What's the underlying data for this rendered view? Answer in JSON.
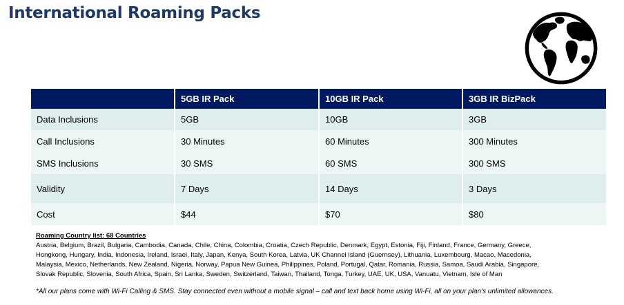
{
  "page": {
    "title": "International Roaming Packs"
  },
  "table": {
    "headers": [
      "",
      "5GB IR Pack",
      "10GB IR Pack",
      "3GB IR BizPack"
    ],
    "rows": [
      [
        "Data Inclusions",
        "5GB",
        "10GB",
        "3GB"
      ],
      [
        "Call Inclusions",
        "30 Minutes",
        "60 Minutes",
        "300 Minutes"
      ],
      [
        "SMS Inclusions",
        "30 SMS",
        "60 SMS",
        "300 SMS"
      ],
      [
        "Validity",
        "7 Days",
        "14 Days",
        "3 Days"
      ],
      [
        "Cost",
        "$44",
        "$70",
        "$80"
      ]
    ]
  },
  "countries": {
    "heading": "Roaming Country list: 68 Countries",
    "lines": [
      "Austria, Belgium, Brazil, Bulgaria, Cambodia, Canada, Chile, China, Colombia, Croatia, Czech Republic, Denmark, Egypt, Estonia, Fiji, Finland, France, Germany, Greece,",
      "Hongkong, Hungary, India, Indonesia, Ireland, Israel, Italy, Japan, Kenya, South Korea, Latvia, UK Channel Island (Guernsey), Lithuania, Luxembourg, Macao, Macedonia,",
      "Malaysia, Mexico, Netherlands, New Zealand, Nigeria, Norway, Papua New Guinea, Philippines, Poland, Portugal, Qatar, Romania, Russia, Samoa, Saudi Arabia, Singapore,",
      "Slovak Republic, Slovenia, South Africa, Spain, Sri Lanka, Sweden, Switzerland, Taiwan, Thailand, Tonga, Turkey, UAE, UK, USA, Vanuatu, Vietnam, Isle of Man"
    ]
  },
  "footnote": "*All our plans come with Wi-Fi Calling & SMS. Stay connected even without a mobile signal – call and text back home using Wi-Fi, all on your plan's unlimited allowances.",
  "icons": {
    "globe": "globe-icon"
  },
  "colors": {
    "title": "#1f3864",
    "header_bg": "#001a61",
    "row_dark": "#deeeee",
    "row_light": "#eef6f5"
  }
}
